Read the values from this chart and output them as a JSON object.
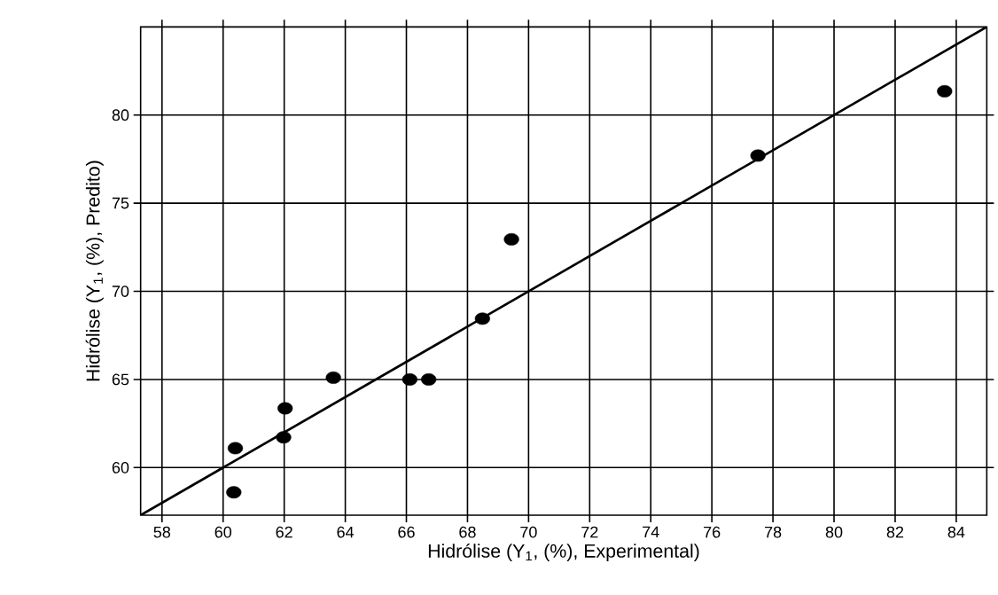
{
  "chart_data": {
    "type": "scatter",
    "xlabel": "Hidrólise (Y$_{1}$, (%), Experimental)",
    "ylabel": "Hidrólise (Y$_{1}$, (%), Predito)",
    "xlim": [
      57.3,
      85
    ],
    "ylim": [
      57.3,
      85
    ],
    "xticks": [
      58,
      60,
      62,
      64,
      66,
      68,
      70,
      72,
      74,
      76,
      78,
      80,
      82,
      84
    ],
    "yticks": [
      60,
      65,
      70,
      75,
      80
    ],
    "grid": true,
    "series": [
      {
        "marker": "circle",
        "color": "#000000",
        "x": [
          60.35,
          60.4,
          61.98,
          62.03,
          63.61,
          66.11,
          66.73,
          68.49,
          69.44,
          77.51,
          83.62
        ],
        "values": [
          58.6,
          61.1,
          61.72,
          63.36,
          65.1,
          65.0,
          65.0,
          68.45,
          72.95,
          77.7,
          81.35
        ]
      },
      {
        "type": "line",
        "marker": "none",
        "color": "#000000",
        "x": [
          57.3,
          85
        ],
        "values": [
          57.3,
          85
        ]
      }
    ]
  }
}
